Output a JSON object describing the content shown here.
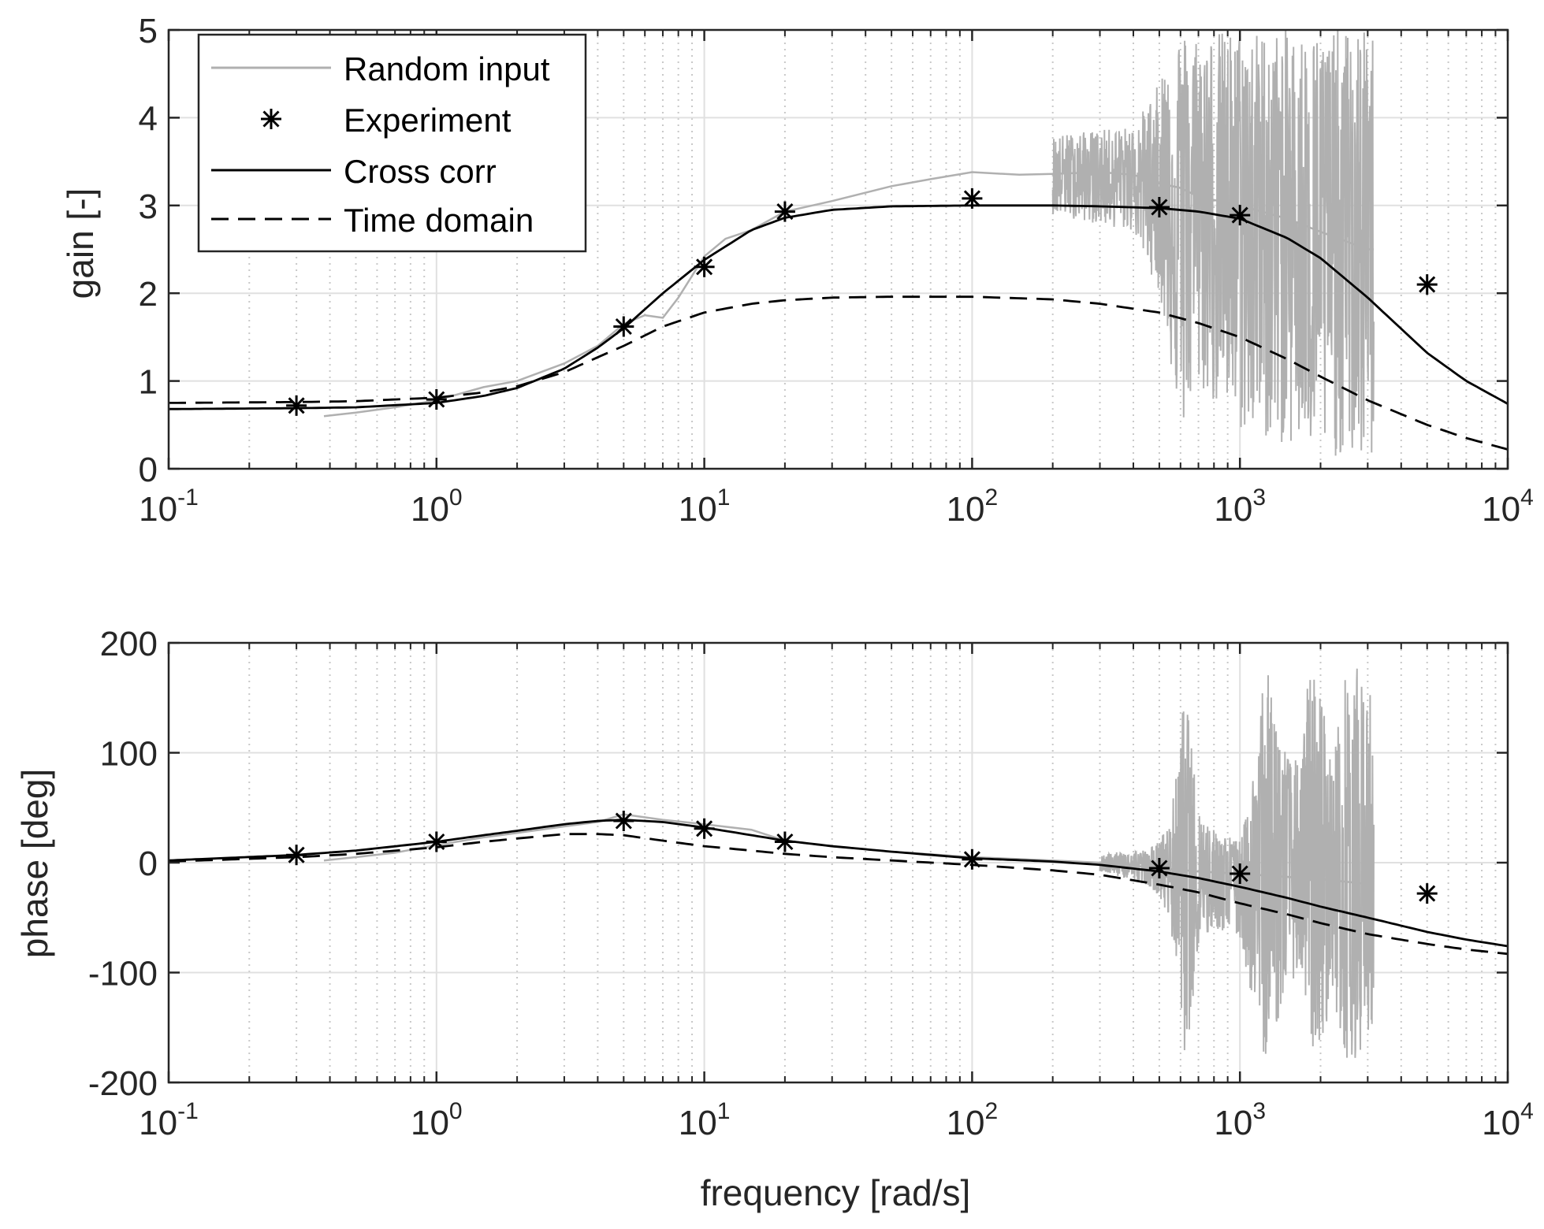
{
  "figure": {
    "xlabel": "frequency [rad/s]",
    "colors": {
      "random": "#b0b0b0",
      "black": "#000000",
      "grid_major": "#e0e0e0",
      "grid_minor": "#c8c8c8",
      "axis": "#262626",
      "background": "#ffffff"
    }
  },
  "legend": {
    "placement": "top-left",
    "entries": [
      {
        "label": "Random input",
        "style": "gray-line"
      },
      {
        "label": "Experiment",
        "style": "asterisk"
      },
      {
        "label": "Cross corr",
        "style": "solid-line"
      },
      {
        "label": "Time domain",
        "style": "dashed-line"
      }
    ]
  },
  "chart_data": [
    {
      "id": "gain",
      "type": "line",
      "ylabel": "gain [-]",
      "xscale": "log",
      "xlim": [
        0.1,
        10000
      ],
      "ylim": [
        0,
        5
      ],
      "yticks": [
        0,
        1,
        2,
        3,
        4,
        5
      ],
      "xticks": [
        {
          "value": 0.1,
          "base": "10",
          "exp": "-1"
        },
        {
          "value": 1,
          "base": "10",
          "exp": "0"
        },
        {
          "value": 10,
          "base": "10",
          "exp": "1"
        },
        {
          "value": 100,
          "base": "10",
          "exp": "2"
        },
        {
          "value": 1000,
          "base": "10",
          "exp": "3"
        },
        {
          "value": 10000,
          "base": "10",
          "exp": "4"
        }
      ],
      "grid": true,
      "series": [
        {
          "name": "Experiment",
          "style": "asterisk",
          "x": [
            0.3,
            1,
            5,
            10,
            20,
            100,
            500,
            1000,
            5000
          ],
          "y": [
            0.72,
            0.79,
            1.62,
            2.3,
            2.93,
            3.08,
            2.98,
            2.89,
            2.1
          ]
        },
        {
          "name": "Cross corr",
          "style": "solid",
          "x": [
            0.1,
            0.3,
            0.5,
            1,
            1.5,
            2,
            3,
            4,
            5,
            7,
            10,
            15,
            20,
            30,
            50,
            100,
            200,
            300,
            500,
            700,
            1000,
            1500,
            2000,
            3000,
            5000,
            7000,
            10000
          ],
          "y": [
            0.68,
            0.69,
            0.7,
            0.75,
            0.83,
            0.92,
            1.14,
            1.38,
            1.6,
            2.0,
            2.38,
            2.72,
            2.86,
            2.95,
            2.99,
            3.0,
            3.0,
            2.99,
            2.97,
            2.93,
            2.85,
            2.63,
            2.4,
            1.95,
            1.32,
            1.0,
            0.74
          ]
        },
        {
          "name": "Time domain",
          "style": "dashed",
          "x": [
            0.1,
            0.3,
            0.5,
            1,
            1.5,
            2,
            3,
            4,
            5,
            7,
            10,
            15,
            20,
            30,
            50,
            100,
            200,
            300,
            500,
            700,
            1000,
            1500,
            2000,
            3000,
            5000,
            7000,
            10000
          ],
          "y": [
            0.75,
            0.76,
            0.77,
            0.81,
            0.87,
            0.94,
            1.1,
            1.27,
            1.4,
            1.62,
            1.78,
            1.88,
            1.92,
            1.95,
            1.96,
            1.96,
            1.93,
            1.88,
            1.78,
            1.66,
            1.5,
            1.25,
            1.05,
            0.78,
            0.5,
            0.35,
            0.22
          ]
        },
        {
          "name": "Random input",
          "style": "gray-noise",
          "x": [
            0.38,
            0.5,
            0.7,
            1,
            1.5,
            2,
            3,
            4,
            5,
            6,
            7,
            8,
            10,
            12,
            15,
            20,
            30,
            50,
            70,
            100,
            150,
            200,
            300,
            400,
            500,
            600,
            700,
            1000,
            1500,
            2000,
            3000,
            3160
          ],
          "y": [
            0.6,
            0.64,
            0.7,
            0.78,
            0.93,
            1.0,
            1.2,
            1.4,
            1.65,
            1.75,
            1.72,
            1.95,
            2.42,
            2.62,
            2.72,
            2.93,
            3.05,
            3.22,
            3.3,
            3.38,
            3.35,
            3.36,
            3.38,
            3.35,
            3.25,
            3.2,
            3.1,
            3.0,
            2.85,
            2.7,
            2.5,
            2.5
          ],
          "noise_band": {
            "x": [
              200,
              400,
              500,
              550,
              600,
              700,
              1000,
              1500,
              2000,
              3000,
              3160
            ],
            "lo": [
              2.9,
              2.7,
              2.0,
              1.2,
              0.35,
              0.9,
              0.4,
              0.25,
              0.15,
              0.08,
              0.08
            ],
            "hi": [
              3.8,
              3.9,
              4.4,
              5.0,
              5.0,
              5.0,
              5.0,
              5.0,
              5.0,
              5.0,
              5.0
            ]
          }
        }
      ]
    },
    {
      "id": "phase",
      "type": "line",
      "ylabel": "phase [deg]",
      "xlabel": "frequency [rad/s]",
      "xscale": "log",
      "xlim": [
        0.1,
        10000
      ],
      "ylim": [
        -200,
        200
      ],
      "yticks": [
        -200,
        -100,
        0,
        100,
        200
      ],
      "xticks": [
        {
          "value": 0.1,
          "base": "10",
          "exp": "-1"
        },
        {
          "value": 1,
          "base": "10",
          "exp": "0"
        },
        {
          "value": 10,
          "base": "10",
          "exp": "1"
        },
        {
          "value": 100,
          "base": "10",
          "exp": "2"
        },
        {
          "value": 1000,
          "base": "10",
          "exp": "3"
        },
        {
          "value": 10000,
          "base": "10",
          "exp": "4"
        }
      ],
      "grid": true,
      "series": [
        {
          "name": "Experiment",
          "style": "asterisk",
          "x": [
            0.3,
            1,
            5,
            10,
            20,
            100,
            500,
            1000,
            5000
          ],
          "y": [
            7,
            19,
            38,
            31,
            19,
            3,
            -5,
            -10,
            -28
          ]
        },
        {
          "name": "Cross corr",
          "style": "solid",
          "x": [
            0.1,
            0.3,
            0.5,
            1,
            1.5,
            2,
            3,
            4,
            5,
            7,
            10,
            15,
            20,
            30,
            50,
            100,
            200,
            300,
            500,
            700,
            1000,
            1500,
            2000,
            3000,
            5000,
            7000,
            10000
          ],
          "y": [
            2,
            7,
            11,
            19,
            25,
            29,
            35,
            38,
            39,
            37,
            32,
            25,
            20,
            15,
            10,
            4,
            1,
            -2,
            -8,
            -14,
            -22,
            -32,
            -40,
            -50,
            -63,
            -70,
            -76
          ]
        },
        {
          "name": "Time domain",
          "style": "dashed",
          "x": [
            0.1,
            0.3,
            0.5,
            1,
            1.5,
            2,
            3,
            4,
            5,
            7,
            10,
            15,
            20,
            30,
            50,
            100,
            200,
            300,
            500,
            700,
            1000,
            1500,
            2000,
            3000,
            5000,
            7000,
            10000
          ],
          "y": [
            1,
            5,
            8,
            14,
            19,
            22,
            26,
            26,
            25,
            20,
            15,
            11,
            8,
            5,
            2,
            -2,
            -7,
            -11,
            -20,
            -27,
            -37,
            -47,
            -55,
            -65,
            -74,
            -79,
            -83
          ]
        },
        {
          "name": "Random input",
          "style": "gray-noise",
          "x": [
            0.38,
            0.5,
            0.7,
            1,
            1.5,
            2,
            3,
            4,
            5,
            7,
            10,
            15,
            20,
            30,
            50,
            100,
            200,
            300,
            500,
            700,
            1000,
            2000,
            3160
          ],
          "y": [
            2,
            5,
            9,
            16,
            23,
            27,
            33,
            37,
            44,
            39,
            35,
            30,
            20,
            15,
            10,
            5,
            2,
            0,
            -5,
            -8,
            -10,
            -15,
            -20
          ],
          "noise_band": {
            "x": [
              300,
              450,
              500,
              550,
              600,
              620,
              650,
              700,
              800,
              1000,
              1100,
              1200,
              1300,
              1500,
              1700,
              1800,
              2000,
              2200,
              2500,
              2800,
              3000,
              3160
            ],
            "lo": [
              -8,
              -20,
              -30,
              -60,
              -120,
              -175,
              -150,
              -80,
              -60,
              -70,
              -120,
              -175,
              -175,
              -110,
              -100,
              -170,
              -175,
              -120,
              -178,
              -178,
              -150,
              -178
            ],
            "hi": [
              8,
              12,
              20,
              40,
              110,
              165,
              120,
              50,
              30,
              20,
              60,
              175,
              170,
              100,
              90,
              178,
              165,
              90,
              178,
              178,
              150,
              178
            ]
          }
        }
      ]
    }
  ]
}
